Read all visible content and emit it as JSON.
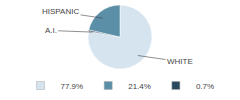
{
  "chart_data": {
    "type": "pie",
    "categories": [
      "WHITE",
      "A.I.",
      "HISPANIC"
    ],
    "values": [
      77.9,
      0.7,
      21.4
    ],
    "value_labels": [
      "77.9%",
      "0.7%",
      "21.4%"
    ],
    "colors": [
      "#d6e4f0",
      "#2c4a5e",
      "#5b8fa8"
    ],
    "legend": "bottom"
  }
}
